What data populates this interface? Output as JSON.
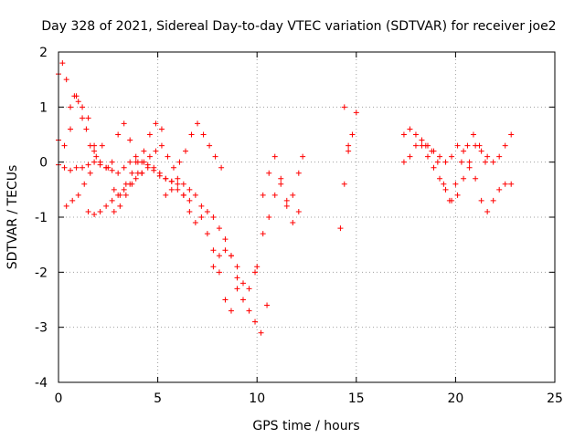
{
  "chart_data": {
    "type": "scatter",
    "title": "Day 328 of 2021, Sidereal Day-to-day VTEC variation (SDTVAR) for receiver joe2",
    "xlabel": "GPS time / hours",
    "ylabel": "SDTVAR / TECUs",
    "xlim": [
      0,
      25
    ],
    "ylim": [
      -4,
      2
    ],
    "x_ticks": [
      0,
      5,
      10,
      15,
      20,
      25
    ],
    "x_tick_labels": [
      "0",
      "5",
      "10",
      "15",
      "20",
      "25"
    ],
    "y_ticks": [
      -4,
      -3,
      -2,
      -1,
      0,
      1,
      2
    ],
    "y_tick_labels": [
      "-4",
      "-3",
      "-2",
      "-1",
      "0",
      "1",
      "2"
    ],
    "grid": true,
    "marker": "+",
    "color": "#ff0000",
    "series": [
      {
        "name": "s1",
        "x": [
          0.0,
          0.2,
          0.4,
          0.6,
          0.8,
          1.0,
          1.2,
          1.4,
          1.6,
          1.8
        ],
        "y": [
          1.6,
          1.8,
          1.5,
          1.0,
          1.2,
          1.1,
          0.8,
          0.6,
          0.3,
          0.2
        ]
      },
      {
        "name": "s2",
        "x": [
          0.0,
          0.3,
          0.6,
          0.9,
          1.2,
          1.5,
          1.8,
          2.1,
          2.4,
          2.7,
          3.0,
          3.3,
          3.6,
          3.9,
          4.2
        ],
        "y": [
          0.4,
          0.3,
          0.6,
          1.2,
          1.0,
          0.8,
          0.3,
          0.0,
          -0.1,
          0.0,
          0.5,
          0.7,
          0.4,
          0.0,
          -0.2
        ]
      },
      {
        "name": "s3",
        "x": [
          0.0,
          0.3,
          0.6,
          0.9,
          1.2,
          1.5,
          1.8,
          2.1,
          2.4,
          2.7,
          3.0,
          3.3,
          3.6,
          3.9,
          4.2,
          4.5,
          4.8,
          5.1,
          5.4,
          5.7,
          6.0,
          6.3,
          6.6
        ],
        "y": [
          -0.05,
          -0.1,
          -0.15,
          -0.1,
          -0.1,
          -0.05,
          0.0,
          -0.05,
          -0.1,
          -0.15,
          -0.2,
          -0.1,
          0.0,
          0.1,
          0.0,
          -0.05,
          -0.1,
          -0.2,
          -0.3,
          -0.35,
          -0.5,
          -0.6,
          -0.7
        ]
      },
      {
        "name": "s4",
        "x": [
          0.4,
          0.7,
          1.0,
          1.3,
          1.6,
          1.9,
          2.2,
          2.5,
          2.8,
          3.1,
          3.4,
          3.7,
          4.0,
          4.3,
          4.6,
          4.9,
          5.2
        ],
        "y": [
          -0.8,
          -0.7,
          -0.6,
          -0.4,
          -0.2,
          0.1,
          0.3,
          -0.1,
          -0.5,
          -0.6,
          -0.4,
          -0.2,
          0.0,
          0.2,
          0.5,
          0.7,
          0.6
        ]
      },
      {
        "name": "s5",
        "x": [
          1.5,
          1.8,
          2.1,
          2.4,
          2.7,
          3.0,
          3.3,
          3.6,
          3.9,
          4.2,
          4.5,
          4.8,
          5.1,
          5.4,
          5.7,
          6.0,
          6.3,
          6.6,
          6.9,
          7.2,
          7.5,
          7.8,
          8.1,
          8.4,
          8.7,
          9.0
        ],
        "y": [
          -0.9,
          -0.95,
          -0.9,
          -0.8,
          -0.7,
          -0.6,
          -0.5,
          -0.4,
          -0.3,
          -0.2,
          -0.1,
          -0.15,
          -0.25,
          -0.3,
          -0.35,
          -0.3,
          -0.4,
          -0.5,
          -0.6,
          -0.8,
          -0.9,
          -1.0,
          -1.2,
          -1.4,
          -1.7,
          -2.1
        ]
      },
      {
        "name": "s6",
        "x": [
          2.8,
          3.1,
          3.4,
          3.7,
          4.0,
          4.3,
          4.6,
          4.9,
          5.2,
          5.5,
          5.8,
          6.1,
          6.4,
          6.7,
          7.0,
          7.3,
          7.6,
          7.9,
          8.2
        ],
        "y": [
          -0.9,
          -0.8,
          -0.6,
          -0.4,
          -0.2,
          0.0,
          0.1,
          0.2,
          0.3,
          0.1,
          -0.1,
          0.0,
          0.2,
          0.5,
          0.7,
          0.5,
          0.3,
          0.1,
          -0.1
        ]
      },
      {
        "name": "s7",
        "x": [
          5.4,
          5.7,
          6.0,
          6.3,
          6.6,
          6.9,
          7.2,
          7.5,
          7.8,
          8.1,
          8.4,
          8.7,
          9.0,
          9.3,
          9.6,
          9.9,
          10.2,
          10.5
        ],
        "y": [
          -0.6,
          -0.5,
          -0.4,
          -0.6,
          -0.9,
          -1.1,
          -1.0,
          -1.3,
          -1.6,
          -2.0,
          -2.5,
          -2.7,
          -2.3,
          -2.5,
          -2.7,
          -2.9,
          -3.1,
          -2.6
        ]
      },
      {
        "name": "s8",
        "x": [
          7.8,
          8.1,
          8.4,
          8.7,
          9.0,
          9.3,
          9.6,
          9.9
        ],
        "y": [
          -1.9,
          -1.7,
          -1.6,
          -1.7,
          -1.9,
          -2.2,
          -2.3,
          -2.0
        ]
      },
      {
        "name": "s9",
        "x": [
          10.0,
          10.3,
          10.6,
          10.9,
          11.2,
          11.5,
          11.8,
          12.1
        ],
        "y": [
          -1.9,
          -1.3,
          -1.0,
          -0.6,
          -0.3,
          -0.7,
          -1.1,
          -0.9
        ]
      },
      {
        "name": "s10",
        "x": [
          10.3,
          10.6,
          10.9,
          11.2,
          11.5,
          11.8,
          12.1,
          12.3
        ],
        "y": [
          -0.6,
          -0.2,
          0.1,
          -0.4,
          -0.8,
          -0.6,
          -0.2,
          0.1
        ]
      },
      {
        "name": "s11",
        "x": [
          14.2,
          14.4,
          14.6,
          14.8,
          15.0,
          14.6,
          14.4
        ],
        "y": [
          -1.2,
          -0.4,
          0.2,
          0.5,
          0.9,
          0.3,
          1.0
        ]
      },
      {
        "name": "s12",
        "x": [
          17.4,
          17.7,
          18.0,
          18.3,
          18.6,
          18.9,
          19.2,
          19.5,
          19.8,
          20.1,
          20.4,
          20.7,
          21.0,
          21.3,
          21.6,
          21.9,
          22.2,
          22.5,
          22.8
        ],
        "y": [
          0.5,
          0.6,
          0.5,
          0.3,
          0.1,
          -0.1,
          -0.3,
          -0.5,
          -0.7,
          -0.6,
          -0.3,
          0.0,
          0.3,
          0.2,
          0.1,
          0.0,
          0.1,
          0.3,
          0.5
        ]
      },
      {
        "name": "s13",
        "x": [
          17.4,
          17.7,
          18.0,
          18.3,
          18.6,
          18.9,
          19.2,
          19.5,
          19.8,
          20.1,
          20.4,
          20.7,
          21.0,
          21.3,
          21.6,
          21.9,
          22.2,
          22.5,
          22.8
        ],
        "y": [
          0.0,
          0.1,
          0.3,
          0.4,
          0.3,
          0.2,
          0.1,
          0.0,
          0.1,
          0.3,
          0.2,
          -0.1,
          -0.3,
          -0.7,
          -0.9,
          -0.7,
          -0.5,
          -0.4,
          -0.4
        ]
      },
      {
        "name": "s14",
        "x": [
          18.5,
          18.8,
          19.1,
          19.4,
          19.7,
          20.0,
          20.3,
          20.6,
          20.9,
          21.2,
          21.5
        ],
        "y": [
          0.3,
          0.2,
          0.0,
          -0.4,
          -0.7,
          -0.4,
          0.0,
          0.3,
          0.5,
          0.3,
          0.0
        ]
      }
    ]
  }
}
